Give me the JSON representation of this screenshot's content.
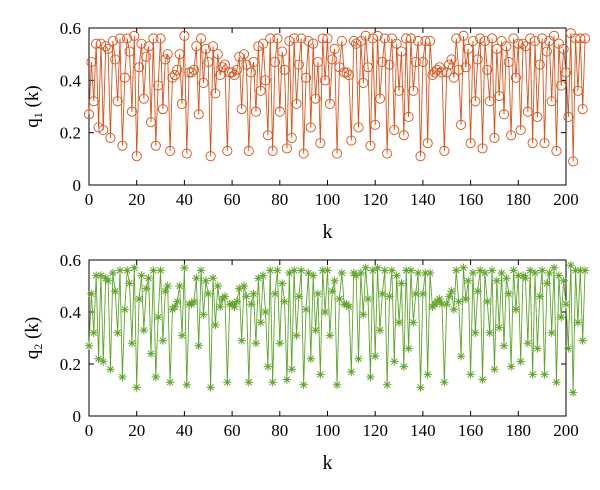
{
  "colors": {
    "series1": "#d9541a",
    "series2": "#5fa52a",
    "axis": "#000000"
  },
  "chart_data": [
    {
      "type": "line",
      "marker": "circle",
      "xlabel": "k",
      "ylabel_main": "q",
      "ylabel_sub": "1",
      "ylabel_arg": " (k)",
      "xlim": [
        0,
        200
      ],
      "ylim": [
        0,
        0.6
      ],
      "xticks": [
        0,
        20,
        40,
        60,
        80,
        100,
        120,
        140,
        160,
        180,
        200
      ],
      "yticks": [
        0,
        0.2,
        0.4,
        0.6
      ],
      "ytick_labels": [
        "0",
        "0.2",
        "0.4",
        "0.6"
      ],
      "grid": false,
      "x_start": 0,
      "values": [
        0.27,
        0.47,
        0.32,
        0.54,
        0.22,
        0.54,
        0.21,
        0.53,
        0.52,
        0.18,
        0.55,
        0.48,
        0.32,
        0.56,
        0.15,
        0.41,
        0.56,
        0.51,
        0.28,
        0.57,
        0.11,
        0.45,
        0.54,
        0.33,
        0.49,
        0.53,
        0.24,
        0.56,
        0.15,
        0.38,
        0.56,
        0.29,
        0.48,
        0.5,
        0.13,
        0.41,
        0.42,
        0.44,
        0.5,
        0.31,
        0.57,
        0.12,
        0.43,
        0.43,
        0.44,
        0.53,
        0.27,
        0.56,
        0.39,
        0.52,
        0.47,
        0.11,
        0.53,
        0.35,
        0.5,
        0.42,
        0.45,
        0.46,
        0.13,
        0.43,
        0.43,
        0.42,
        0.44,
        0.49,
        0.29,
        0.5,
        0.46,
        0.13,
        0.43,
        0.47,
        0.28,
        0.53,
        0.36,
        0.54,
        0.4,
        0.19,
        0.56,
        0.13,
        0.47,
        0.56,
        0.28,
        0.51,
        0.44,
        0.14,
        0.55,
        0.18,
        0.56,
        0.31,
        0.46,
        0.56,
        0.12,
        0.41,
        0.55,
        0.22,
        0.54,
        0.33,
        0.47,
        0.16,
        0.56,
        0.4,
        0.56,
        0.31,
        0.48,
        0.52,
        0.12,
        0.45,
        0.55,
        0.43,
        0.43,
        0.42,
        0.17,
        0.55,
        0.54,
        0.22,
        0.55,
        0.39,
        0.57,
        0.45,
        0.15,
        0.56,
        0.23,
        0.57,
        0.33,
        0.47,
        0.56,
        0.12,
        0.46,
        0.56,
        0.21,
        0.54,
        0.36,
        0.51,
        0.19,
        0.56,
        0.26,
        0.56,
        0.36,
        0.47,
        0.55,
        0.11,
        0.47,
        0.55,
        0.16,
        0.55,
        0.42,
        0.43,
        0.44,
        0.45,
        0.43,
        0.13,
        0.43,
        0.46,
        0.48,
        0.41,
        0.56,
        0.44,
        0.23,
        0.57,
        0.45,
        0.52,
        0.16,
        0.55,
        0.32,
        0.48,
        0.56,
        0.14,
        0.55,
        0.44,
        0.32,
        0.56,
        0.18,
        0.52,
        0.34,
        0.55,
        0.27,
        0.53,
        0.47,
        0.19,
        0.56,
        0.41,
        0.54,
        0.21,
        0.54,
        0.53,
        0.28,
        0.56,
        0.16,
        0.55,
        0.26,
        0.46,
        0.56,
        0.16,
        0.51,
        0.55,
        0.32,
        0.57,
        0.13,
        0.54,
        0.38,
        0.52,
        0.43,
        0.26,
        0.58,
        0.09,
        0.56,
        0.36,
        0.56,
        0.29,
        0.56
      ]
    },
    {
      "type": "line",
      "marker": "asterisk",
      "xlabel": "k",
      "ylabel_main": "q",
      "ylabel_sub": "2",
      "ylabel_arg": " (k)",
      "xlim": [
        0,
        200
      ],
      "ylim": [
        0,
        0.6
      ],
      "xticks": [
        0,
        20,
        40,
        60,
        80,
        100,
        120,
        140,
        160,
        180,
        200
      ],
      "yticks": [
        0,
        0.2,
        0.4,
        0.6
      ],
      "ytick_labels": [
        "0",
        "0.2",
        "0.4",
        "0.6"
      ],
      "grid": false,
      "x_start": 0,
      "values": [
        0.27,
        0.47,
        0.32,
        0.54,
        0.22,
        0.54,
        0.21,
        0.53,
        0.52,
        0.18,
        0.55,
        0.48,
        0.32,
        0.56,
        0.15,
        0.41,
        0.56,
        0.51,
        0.28,
        0.57,
        0.11,
        0.45,
        0.54,
        0.33,
        0.49,
        0.53,
        0.24,
        0.56,
        0.15,
        0.38,
        0.56,
        0.29,
        0.48,
        0.5,
        0.13,
        0.41,
        0.42,
        0.44,
        0.5,
        0.31,
        0.57,
        0.12,
        0.43,
        0.43,
        0.44,
        0.53,
        0.27,
        0.56,
        0.39,
        0.52,
        0.47,
        0.11,
        0.53,
        0.35,
        0.5,
        0.42,
        0.45,
        0.46,
        0.13,
        0.43,
        0.43,
        0.42,
        0.44,
        0.49,
        0.29,
        0.5,
        0.46,
        0.13,
        0.43,
        0.47,
        0.28,
        0.53,
        0.36,
        0.54,
        0.4,
        0.19,
        0.56,
        0.13,
        0.47,
        0.56,
        0.28,
        0.51,
        0.44,
        0.14,
        0.55,
        0.18,
        0.56,
        0.31,
        0.46,
        0.56,
        0.12,
        0.41,
        0.55,
        0.22,
        0.54,
        0.33,
        0.47,
        0.16,
        0.56,
        0.4,
        0.56,
        0.31,
        0.48,
        0.52,
        0.12,
        0.45,
        0.55,
        0.43,
        0.43,
        0.42,
        0.17,
        0.55,
        0.54,
        0.22,
        0.55,
        0.39,
        0.57,
        0.45,
        0.15,
        0.56,
        0.23,
        0.57,
        0.33,
        0.47,
        0.56,
        0.12,
        0.46,
        0.56,
        0.21,
        0.54,
        0.36,
        0.51,
        0.19,
        0.56,
        0.26,
        0.56,
        0.36,
        0.47,
        0.55,
        0.11,
        0.47,
        0.55,
        0.16,
        0.55,
        0.42,
        0.43,
        0.44,
        0.45,
        0.43,
        0.13,
        0.43,
        0.46,
        0.48,
        0.41,
        0.56,
        0.44,
        0.23,
        0.57,
        0.45,
        0.52,
        0.16,
        0.55,
        0.32,
        0.48,
        0.56,
        0.14,
        0.55,
        0.44,
        0.32,
        0.56,
        0.18,
        0.52,
        0.34,
        0.55,
        0.27,
        0.53,
        0.47,
        0.19,
        0.56,
        0.41,
        0.54,
        0.21,
        0.54,
        0.53,
        0.28,
        0.56,
        0.16,
        0.55,
        0.26,
        0.46,
        0.56,
        0.16,
        0.51,
        0.55,
        0.32,
        0.57,
        0.13,
        0.54,
        0.38,
        0.52,
        0.43,
        0.26,
        0.58,
        0.09,
        0.56,
        0.36,
        0.56,
        0.29,
        0.56
      ]
    }
  ]
}
